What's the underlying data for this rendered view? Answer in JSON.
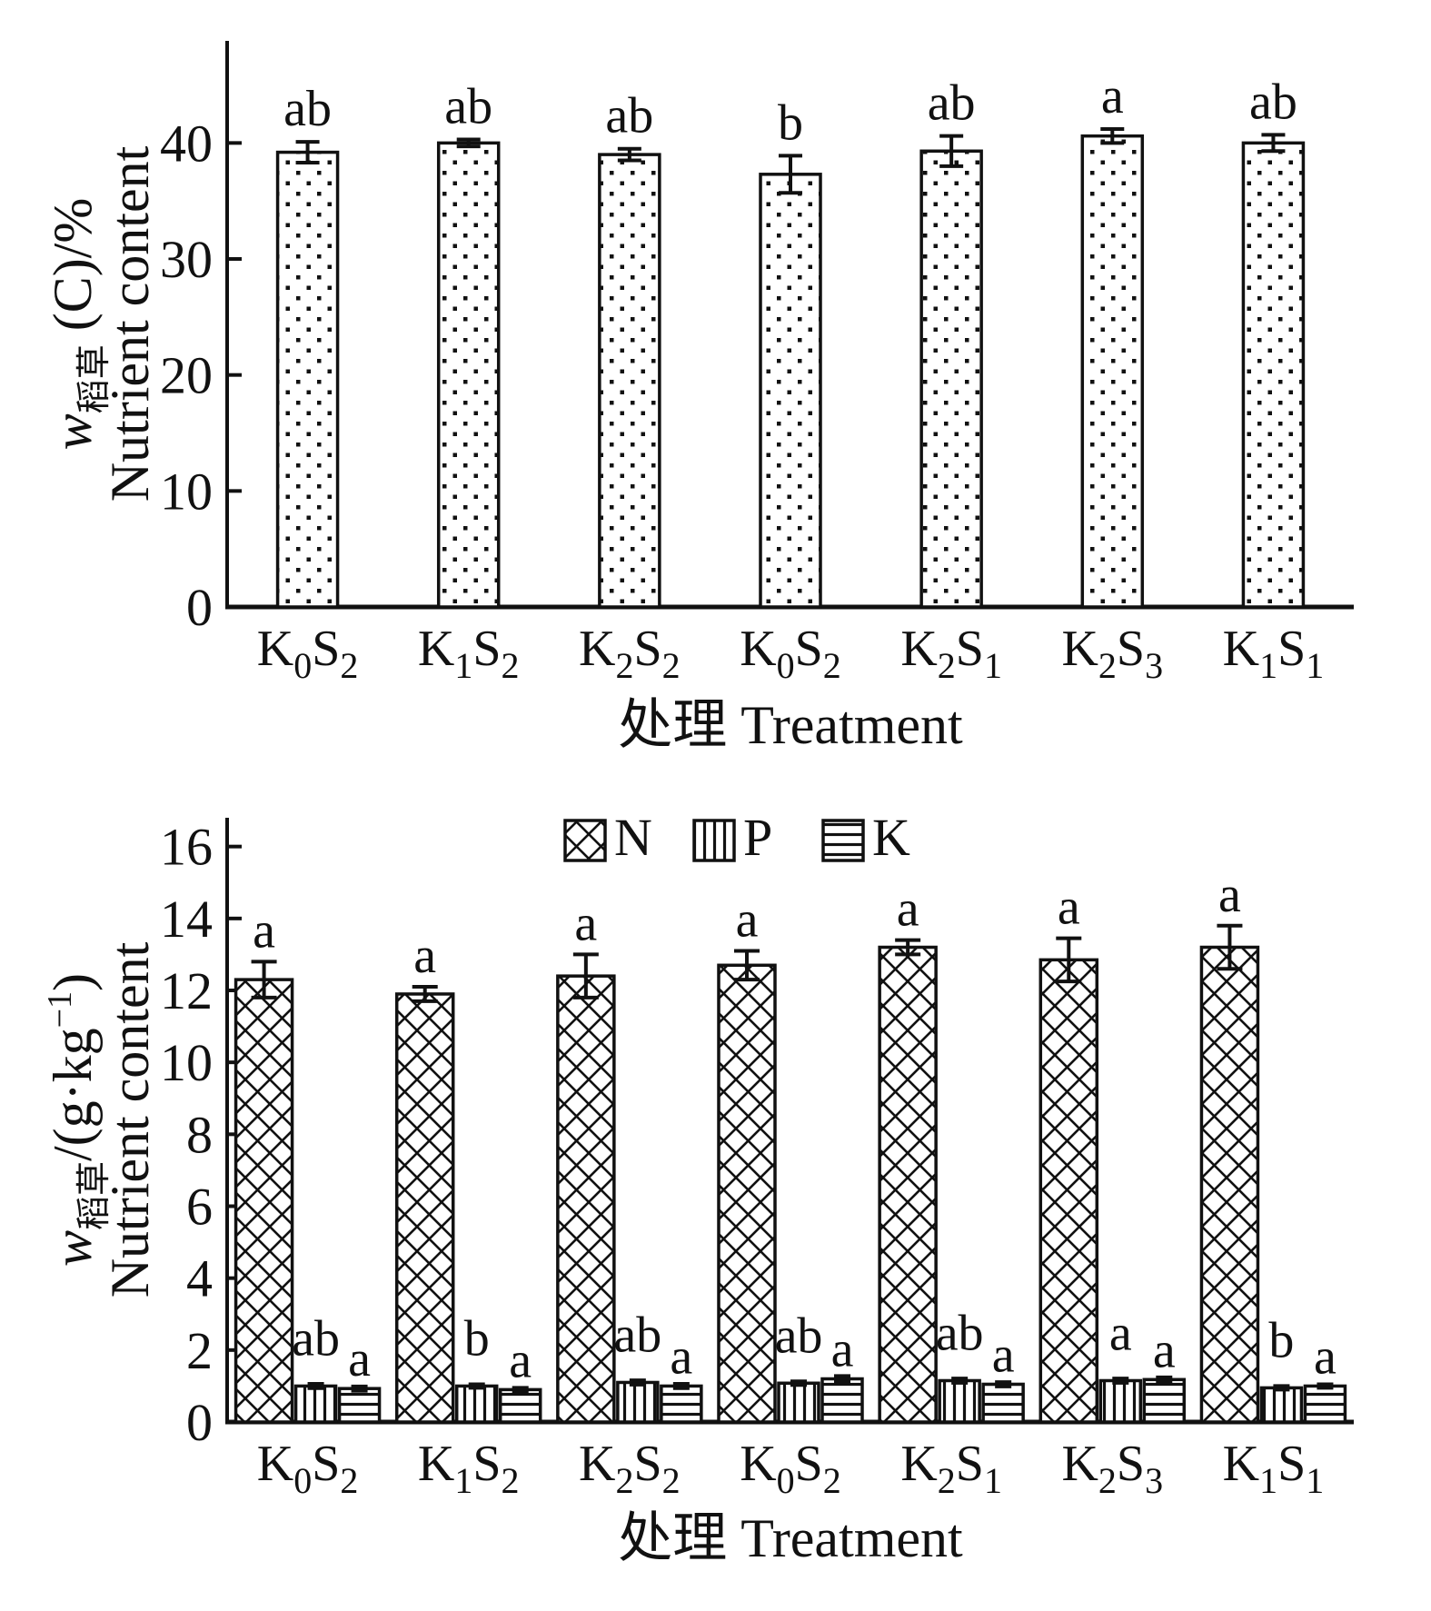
{
  "figure": {
    "background": "#ffffff",
    "ink": "#111111"
  },
  "chart_data": [
    {
      "type": "bar",
      "panel": "top",
      "categories": [
        "K0S2",
        "K1S2",
        "K2S2",
        "K0S2",
        "K2S1",
        "K2S3",
        "K1S1"
      ],
      "values": [
        39.2,
        40.0,
        39.0,
        37.3,
        39.3,
        40.6,
        40.0
      ],
      "errors": [
        0.9,
        0.3,
        0.5,
        1.6,
        1.3,
        0.6,
        0.7
      ],
      "sig_letters": [
        "ab",
        "ab",
        "ab",
        "b",
        "ab",
        "a",
        "ab"
      ],
      "bar_pattern": "dots",
      "xlabel": "处理 Treatment",
      "ylabel_line1_segments": [
        {
          "text": "w",
          "style": "italic",
          "script": "normal"
        },
        {
          "text": "稻草",
          "style": "normal",
          "script": "sub"
        },
        {
          "text": " (C)/%",
          "style": "normal",
          "script": "normal"
        }
      ],
      "ylabel_line2": "Nutrient content",
      "yticks": [
        0,
        10,
        20,
        30,
        40
      ],
      "ylim": [
        0,
        48.8
      ],
      "grid": false,
      "legend": null
    },
    {
      "type": "bar",
      "panel": "bottom",
      "categories": [
        "K0S2",
        "K1S2",
        "K2S2",
        "K0S2",
        "K2S1",
        "K2S3",
        "K1S1"
      ],
      "series": [
        {
          "name": "N",
          "pattern": "crosshatch",
          "values": [
            12.3,
            11.9,
            12.4,
            12.7,
            13.2,
            12.85,
            13.2
          ],
          "errors": [
            0.5,
            0.2,
            0.6,
            0.4,
            0.2,
            0.6,
            0.6
          ],
          "sig_letters": [
            "a",
            "a",
            "a",
            "a",
            "a",
            "a",
            "a"
          ]
        },
        {
          "name": "P",
          "pattern": "vlines",
          "values": [
            1.0,
            1.0,
            1.1,
            1.08,
            1.15,
            1.15,
            0.95
          ],
          "errors": [
            0.06,
            0.05,
            0.06,
            0.05,
            0.06,
            0.06,
            0.05
          ],
          "sig_letters": [
            "ab",
            "b",
            "ab",
            "ab",
            "ab",
            "a",
            "b"
          ]
        },
        {
          "name": "K",
          "pattern": "hlines",
          "values": [
            0.93,
            0.9,
            1.0,
            1.2,
            1.05,
            1.18,
            1.0
          ],
          "errors": [
            0.06,
            0.05,
            0.06,
            0.08,
            0.06,
            0.06,
            0.05
          ],
          "sig_letters": [
            "a",
            "a",
            "a",
            "a",
            "a",
            "a",
            "a"
          ]
        }
      ],
      "xlabel": "处理 Treatment",
      "ylabel_line1_segments": [
        {
          "text": "w",
          "style": "italic",
          "script": "normal"
        },
        {
          "text": "稻草",
          "style": "normal",
          "script": "sub"
        },
        {
          "text": "/(g·kg",
          "style": "normal",
          "script": "normal"
        },
        {
          "text": "−1",
          "style": "normal",
          "script": "sup"
        },
        {
          "text": ")",
          "style": "normal",
          "script": "normal"
        }
      ],
      "ylabel_line2": "Nutrient content",
      "yticks": [
        0,
        2,
        4,
        6,
        8,
        10,
        12,
        14,
        16
      ],
      "ylim": [
        0,
        16.8
      ],
      "grid": false,
      "legend": {
        "position": "top-center",
        "items": [
          "N",
          "P",
          "K"
        ]
      }
    }
  ]
}
